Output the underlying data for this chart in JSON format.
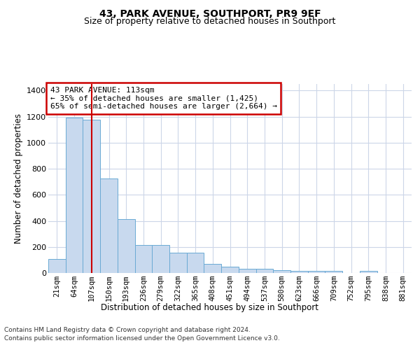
{
  "title": "43, PARK AVENUE, SOUTHPORT, PR9 9EF",
  "subtitle": "Size of property relative to detached houses in Southport",
  "xlabel": "Distribution of detached houses by size in Southport",
  "ylabel": "Number of detached properties",
  "bar_color": "#c8d9ee",
  "bar_edge_color": "#6aaad4",
  "background_color": "#ffffff",
  "grid_color": "#ccd6e8",
  "annotation_text": "43 PARK AVENUE: 113sqm\n← 35% of detached houses are smaller (1,425)\n65% of semi-detached houses are larger (2,664) →",
  "vline_x": 2,
  "vline_color": "#cc0000",
  "categories": [
    "21sqm",
    "64sqm",
    "107sqm",
    "150sqm",
    "193sqm",
    "236sqm",
    "279sqm",
    "322sqm",
    "365sqm",
    "408sqm",
    "451sqm",
    "494sqm",
    "537sqm",
    "580sqm",
    "623sqm",
    "666sqm",
    "709sqm",
    "752sqm",
    "795sqm",
    "838sqm",
    "881sqm"
  ],
  "values": [
    105,
    1190,
    1175,
    725,
    415,
    215,
    215,
    155,
    155,
    70,
    50,
    30,
    30,
    20,
    15,
    15,
    15,
    0,
    15,
    0,
    0
  ],
  "ylim": [
    0,
    1450
  ],
  "yticks": [
    0,
    200,
    400,
    600,
    800,
    1000,
    1200,
    1400
  ],
  "footer_line1": "Contains HM Land Registry data © Crown copyright and database right 2024.",
  "footer_line2": "Contains public sector information licensed under the Open Government Licence v3.0.",
  "figsize": [
    6.0,
    5.0
  ],
  "dpi": 100
}
